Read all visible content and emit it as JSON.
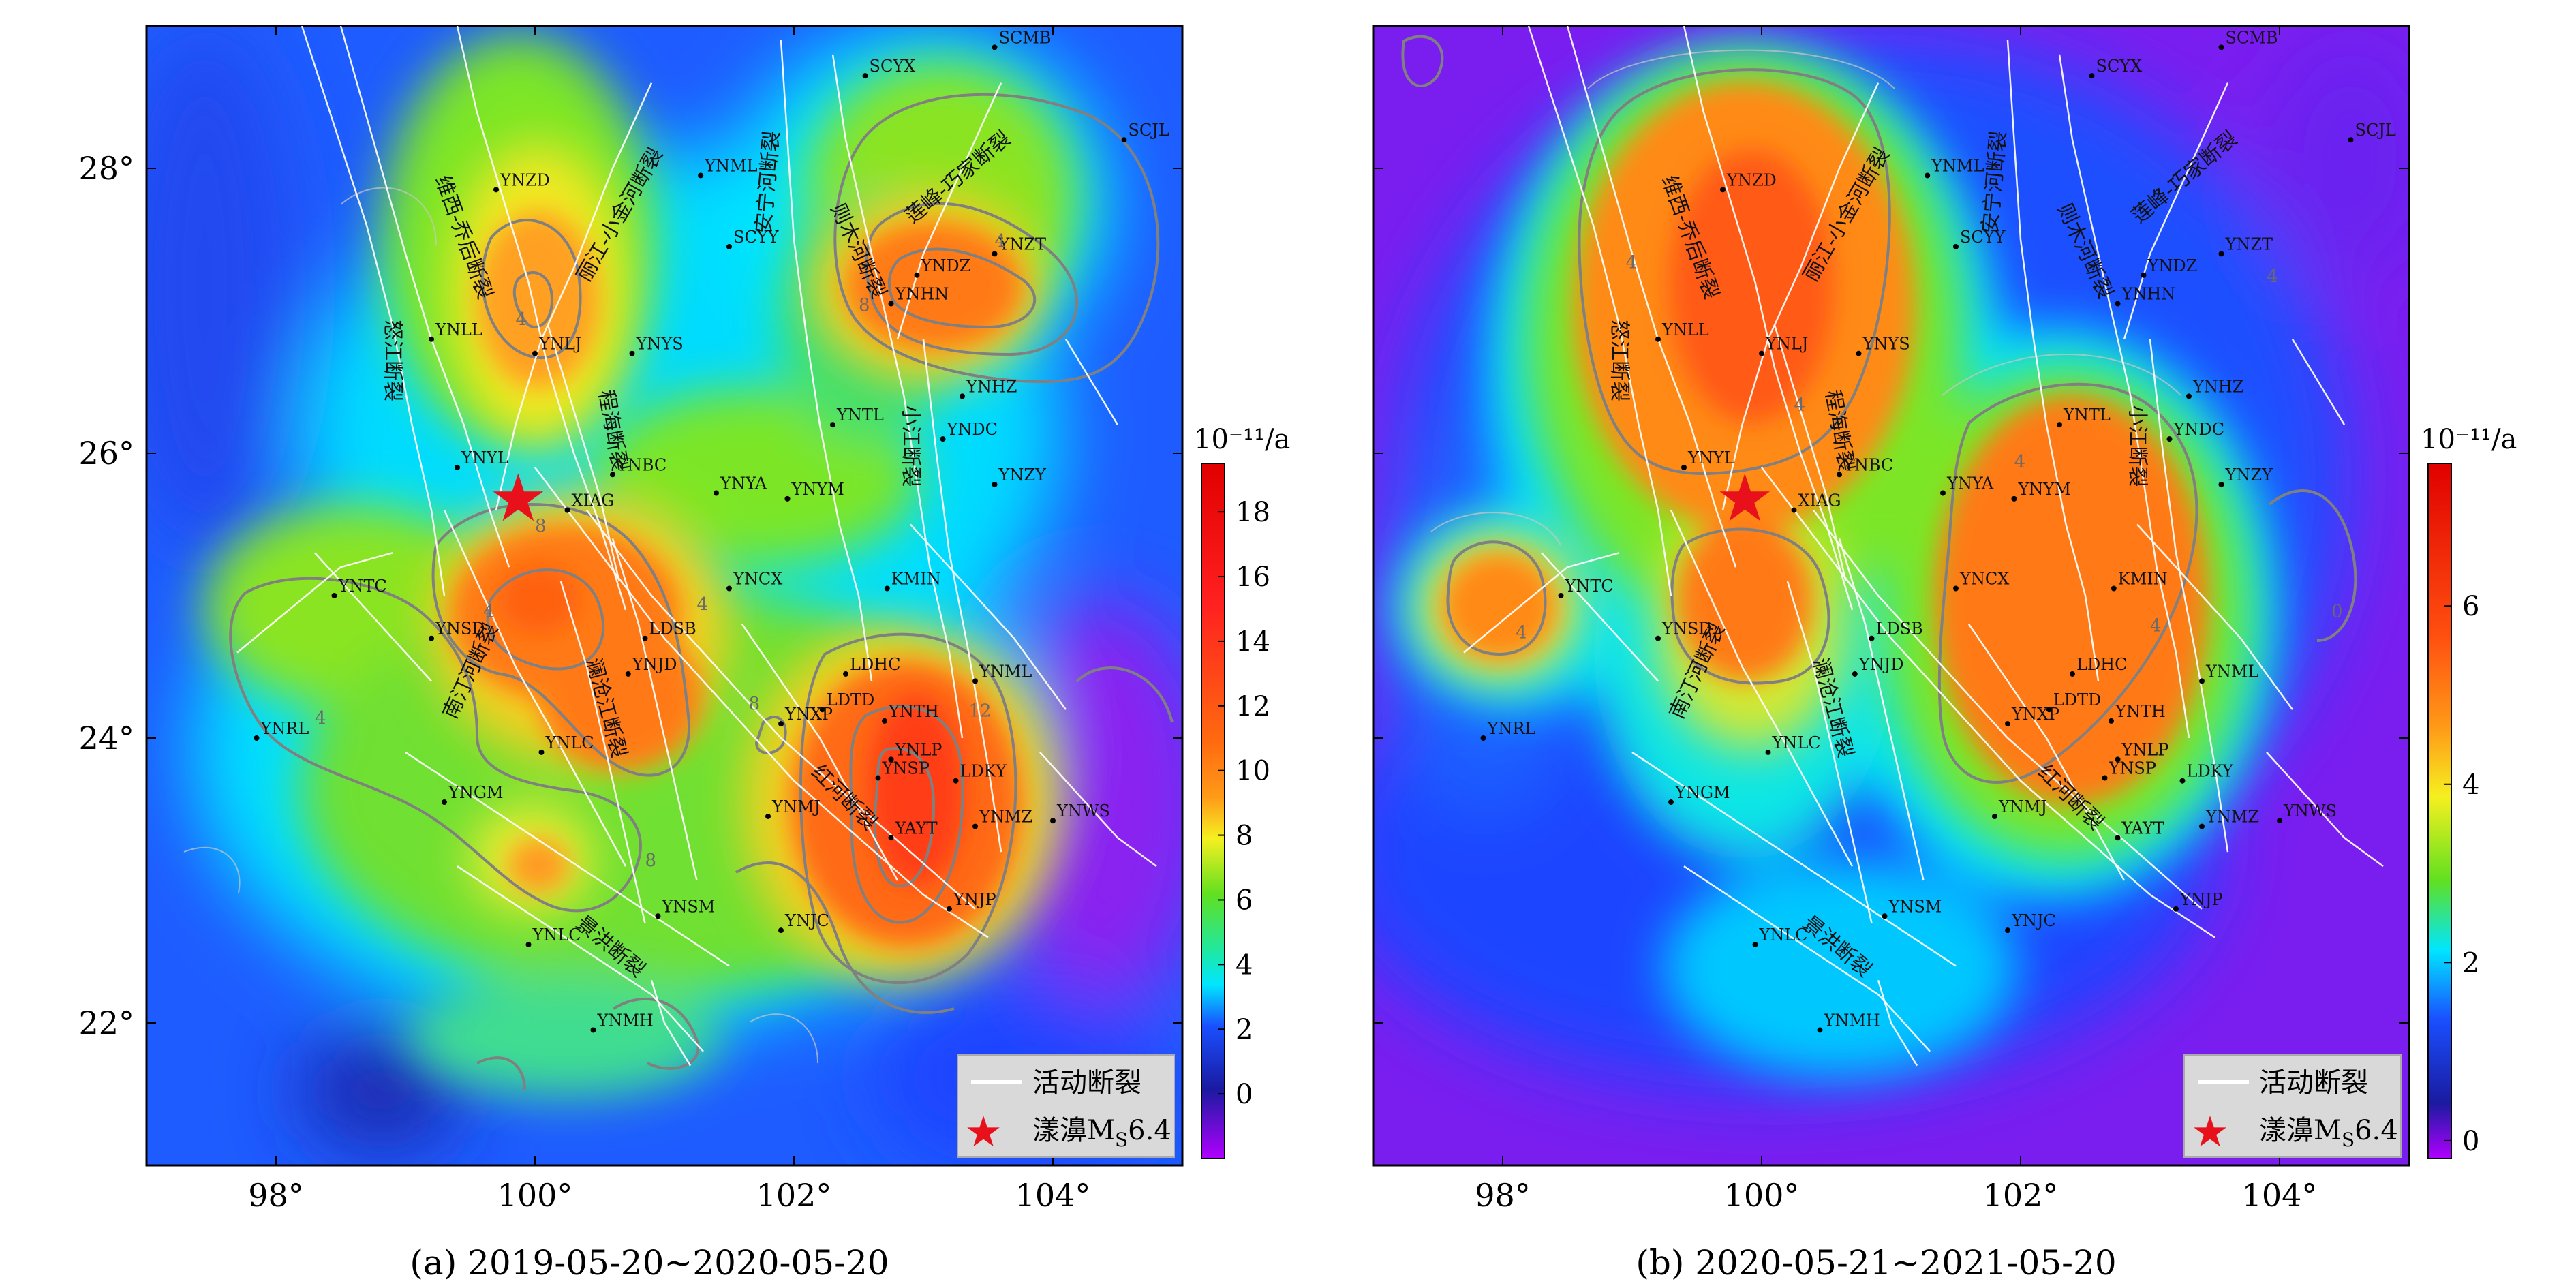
{
  "panels": [
    {
      "id": "a",
      "caption": "(a) 2019-05-20~2020-05-20",
      "x_ticks": [
        "98°",
        "100°",
        "102°",
        "104°"
      ],
      "y_ticks": [
        "22°",
        "24°",
        "26°",
        "28°"
      ],
      "colorbar": {
        "unit": "10⁻¹¹/a",
        "ticks": [
          "0",
          "2",
          "4",
          "6",
          "8",
          "10",
          "12",
          "14",
          "16",
          "18"
        ],
        "range": [
          -2,
          19.5
        ]
      },
      "contour_labels": [
        "4",
        "8",
        "4",
        "8",
        "12",
        "4",
        "4",
        "8",
        "8",
        "4"
      ],
      "epicenter": {
        "lon": 99.87,
        "lat": 25.67
      },
      "stations": [
        {
          "name": "SCMB",
          "lon": 103.55,
          "lat": 28.85
        },
        {
          "name": "SCYX",
          "lon": 102.55,
          "lat": 28.65
        },
        {
          "name": "SCJL",
          "lon": 104.55,
          "lat": 28.2
        },
        {
          "name": "YNZD",
          "lon": 99.7,
          "lat": 27.85
        },
        {
          "name": "YNML",
          "lon": 101.28,
          "lat": 27.95
        },
        {
          "name": "SCYY",
          "lon": 101.5,
          "lat": 27.45
        },
        {
          "name": "YNDZ",
          "lon": 102.95,
          "lat": 27.25
        },
        {
          "name": "YNZT",
          "lon": 103.55,
          "lat": 27.4
        },
        {
          "name": "YNHN",
          "lon": 102.75,
          "lat": 27.05
        },
        {
          "name": "YNLL",
          "lon": 99.2,
          "lat": 26.8
        },
        {
          "name": "YNLJ",
          "lon": 100.0,
          "lat": 26.7
        },
        {
          "name": "YNYS",
          "lon": 100.75,
          "lat": 26.7
        },
        {
          "name": "YNHZ",
          "lon": 103.3,
          "lat": 26.4
        },
        {
          "name": "YNTL",
          "lon": 102.3,
          "lat": 26.2
        },
        {
          "name": "YNDC",
          "lon": 103.15,
          "lat": 26.1
        },
        {
          "name": "YNYL",
          "lon": 99.4,
          "lat": 25.9
        },
        {
          "name": "YNBC",
          "lon": 100.6,
          "lat": 25.85
        },
        {
          "name": "YNYA",
          "lon": 101.4,
          "lat": 25.72
        },
        {
          "name": "YNYM",
          "lon": 101.95,
          "lat": 25.68
        },
        {
          "name": "YNZY",
          "lon": 103.55,
          "lat": 25.78
        },
        {
          "name": "XIAG",
          "lon": 100.25,
          "lat": 25.6
        },
        {
          "name": "YNTC",
          "lon": 98.45,
          "lat": 25.0
        },
        {
          "name": "YNCX",
          "lon": 101.5,
          "lat": 25.05
        },
        {
          "name": "KMIN",
          "lon": 102.72,
          "lat": 25.05
        },
        {
          "name": "YNSD",
          "lon": 99.2,
          "lat": 24.7
        },
        {
          "name": "LDSB",
          "lon": 100.85,
          "lat": 24.7
        },
        {
          "name": "YNJD",
          "lon": 100.72,
          "lat": 24.45
        },
        {
          "name": "LDHC",
          "lon": 102.4,
          "lat": 24.45
        },
        {
          "name": "YNML",
          "lon": 103.4,
          "lat": 24.4
        },
        {
          "name": "LDTD",
          "lon": 102.22,
          "lat": 24.2
        },
        {
          "name": "YNXP",
          "lon": 101.9,
          "lat": 24.1
        },
        {
          "name": "YNTH",
          "lon": 102.7,
          "lat": 24.12
        },
        {
          "name": "YNRL",
          "lon": 97.85,
          "lat": 24.0
        },
        {
          "name": "YNLC",
          "lon": 100.05,
          "lat": 23.9
        },
        {
          "name": "YNLP",
          "lon": 102.75,
          "lat": 23.85
        },
        {
          "name": "YNSP",
          "lon": 102.65,
          "lat": 23.72
        },
        {
          "name": "LDKY",
          "lon": 103.25,
          "lat": 23.7
        },
        {
          "name": "YNGM",
          "lon": 99.3,
          "lat": 23.55
        },
        {
          "name": "YNMJ",
          "lon": 101.8,
          "lat": 23.45
        },
        {
          "name": "YNMZ",
          "lon": 103.4,
          "lat": 23.38
        },
        {
          "name": "YNWS",
          "lon": 104.0,
          "lat": 23.42
        },
        {
          "name": "YAYT",
          "lon": 102.75,
          "lat": 23.3
        },
        {
          "name": "YNJP",
          "lon": 103.2,
          "lat": 22.8
        },
        {
          "name": "YNSM",
          "lon": 100.95,
          "lat": 22.75
        },
        {
          "name": "YNJC",
          "lon": 101.9,
          "lat": 22.65
        },
        {
          "name": "YNLC",
          "lon": 99.95,
          "lat": 22.55
        },
        {
          "name": "YNMH",
          "lon": 100.45,
          "lat": 21.95
        }
      ],
      "faults": [
        {
          "name": "维西-乔后断裂",
          "lon": 99.4,
          "lat": 27.5,
          "rot": 70
        },
        {
          "name": "丽江-小金河断裂",
          "lon": 100.7,
          "lat": 27.65,
          "rot": -60
        },
        {
          "name": "安宁河断裂",
          "lon": 101.85,
          "lat": 27.9,
          "rot": -85
        },
        {
          "name": "则木河断裂",
          "lon": 102.45,
          "lat": 27.4,
          "rot": 65
        },
        {
          "name": "莲峰-巧家断裂",
          "lon": 103.3,
          "lat": 27.9,
          "rot": -40
        },
        {
          "name": "怒江断裂",
          "lon": 98.85,
          "lat": 26.65,
          "rot": 90
        },
        {
          "name": "程海断裂",
          "lon": 100.55,
          "lat": 26.15,
          "rot": 80
        },
        {
          "name": "小江断裂",
          "lon": 102.85,
          "lat": 26.05,
          "rot": 90
        },
        {
          "name": "南汀河断裂",
          "lon": 99.55,
          "lat": 24.45,
          "rot": -65
        },
        {
          "name": "澜沧江断裂",
          "lon": 100.5,
          "lat": 24.2,
          "rot": 75
        },
        {
          "name": "红河断裂",
          "lon": 102.35,
          "lat": 23.55,
          "rot": 45
        },
        {
          "name": "景洪断裂",
          "lon": 100.55,
          "lat": 22.5,
          "rot": 40
        }
      ],
      "legend": {
        "fault": "活动断裂",
        "quake_prefix": "漾濞M",
        "quake_sub": "S",
        "quake_suffix": "6.4"
      }
    },
    {
      "id": "b",
      "caption": "(b) 2020-05-21~2021-05-20",
      "x_ticks": [
        "98°",
        "100°",
        "102°",
        "104°"
      ],
      "y_ticks": [],
      "colorbar": {
        "unit": "10⁻¹¹/a",
        "ticks": [
          "0",
          "2",
          "4",
          "6"
        ],
        "range": [
          -0.2,
          7.6
        ]
      },
      "contour_labels": [
        "4",
        "4",
        "4",
        "4",
        "4",
        "4",
        "0"
      ],
      "epicenter": {
        "lon": 99.87,
        "lat": 25.67
      },
      "stations": [
        {
          "name": "SCMB",
          "lon": 103.55,
          "lat": 28.85
        },
        {
          "name": "SCYX",
          "lon": 102.55,
          "lat": 28.65
        },
        {
          "name": "SCJL",
          "lon": 104.55,
          "lat": 28.2
        },
        {
          "name": "YNZD",
          "lon": 99.7,
          "lat": 27.85
        },
        {
          "name": "YNML",
          "lon": 101.28,
          "lat": 27.95
        },
        {
          "name": "SCYY",
          "lon": 101.5,
          "lat": 27.45
        },
        {
          "name": "YNDZ",
          "lon": 102.95,
          "lat": 27.25
        },
        {
          "name": "YNZT",
          "lon": 103.55,
          "lat": 27.4
        },
        {
          "name": "YNHN",
          "lon": 102.75,
          "lat": 27.05
        },
        {
          "name": "YNLL",
          "lon": 99.2,
          "lat": 26.8
        },
        {
          "name": "YNLJ",
          "lon": 100.0,
          "lat": 26.7
        },
        {
          "name": "YNYS",
          "lon": 100.75,
          "lat": 26.7
        },
        {
          "name": "YNHZ",
          "lon": 103.3,
          "lat": 26.4
        },
        {
          "name": "YNTL",
          "lon": 102.3,
          "lat": 26.2
        },
        {
          "name": "YNDC",
          "lon": 103.15,
          "lat": 26.1
        },
        {
          "name": "YNYL",
          "lon": 99.4,
          "lat": 25.9
        },
        {
          "name": "YNBC",
          "lon": 100.6,
          "lat": 25.85
        },
        {
          "name": "YNYA",
          "lon": 101.4,
          "lat": 25.72
        },
        {
          "name": "YNYM",
          "lon": 101.95,
          "lat": 25.68
        },
        {
          "name": "YNZY",
          "lon": 103.55,
          "lat": 25.78
        },
        {
          "name": "XIAG",
          "lon": 100.25,
          "lat": 25.6
        },
        {
          "name": "YNTC",
          "lon": 98.45,
          "lat": 25.0
        },
        {
          "name": "YNCX",
          "lon": 101.5,
          "lat": 25.05
        },
        {
          "name": "KMIN",
          "lon": 102.72,
          "lat": 25.05
        },
        {
          "name": "YNSD",
          "lon": 99.2,
          "lat": 24.7
        },
        {
          "name": "LDSB",
          "lon": 100.85,
          "lat": 24.7
        },
        {
          "name": "YNJD",
          "lon": 100.72,
          "lat": 24.45
        },
        {
          "name": "LDHC",
          "lon": 102.4,
          "lat": 24.45
        },
        {
          "name": "YNML",
          "lon": 103.4,
          "lat": 24.4
        },
        {
          "name": "LDTD",
          "lon": 102.22,
          "lat": 24.2
        },
        {
          "name": "YNXP",
          "lon": 101.9,
          "lat": 24.1
        },
        {
          "name": "YNTH",
          "lon": 102.7,
          "lat": 24.12
        },
        {
          "name": "YNRL",
          "lon": 97.85,
          "lat": 24.0
        },
        {
          "name": "YNLC",
          "lon": 100.05,
          "lat": 23.9
        },
        {
          "name": "YNLP",
          "lon": 102.75,
          "lat": 23.85
        },
        {
          "name": "YNSP",
          "lon": 102.65,
          "lat": 23.72
        },
        {
          "name": "LDKY",
          "lon": 103.25,
          "lat": 23.7
        },
        {
          "name": "YNGM",
          "lon": 99.3,
          "lat": 23.55
        },
        {
          "name": "YNMJ",
          "lon": 101.8,
          "lat": 23.45
        },
        {
          "name": "YNMZ",
          "lon": 103.4,
          "lat": 23.38
        },
        {
          "name": "YNWS",
          "lon": 104.0,
          "lat": 23.42
        },
        {
          "name": "YAYT",
          "lon": 102.75,
          "lat": 23.3
        },
        {
          "name": "YNJP",
          "lon": 103.2,
          "lat": 22.8
        },
        {
          "name": "YNSM",
          "lon": 100.95,
          "lat": 22.75
        },
        {
          "name": "YNJC",
          "lon": 101.9,
          "lat": 22.65
        },
        {
          "name": "YNLC",
          "lon": 99.95,
          "lat": 22.55
        },
        {
          "name": "YNMH",
          "lon": 100.45,
          "lat": 21.95
        }
      ],
      "faults": [
        {
          "name": "维西-乔后断裂",
          "lon": 99.4,
          "lat": 27.5,
          "rot": 70
        },
        {
          "name": "丽江-小金河断裂",
          "lon": 100.7,
          "lat": 27.65,
          "rot": -60
        },
        {
          "name": "安宁河断裂",
          "lon": 101.85,
          "lat": 27.9,
          "rot": -85
        },
        {
          "name": "则木河断裂",
          "lon": 102.45,
          "lat": 27.4,
          "rot": 65
        },
        {
          "name": "莲峰-巧家断裂",
          "lon": 103.3,
          "lat": 27.9,
          "rot": -40
        },
        {
          "name": "怒江断裂",
          "lon": 98.85,
          "lat": 26.65,
          "rot": 90
        },
        {
          "name": "程海断裂",
          "lon": 100.55,
          "lat": 26.15,
          "rot": 80
        },
        {
          "name": "小江断裂",
          "lon": 102.85,
          "lat": 26.05,
          "rot": 90
        },
        {
          "name": "南汀河断裂",
          "lon": 99.55,
          "lat": 24.45,
          "rot": -65
        },
        {
          "name": "澜沧江断裂",
          "lon": 100.5,
          "lat": 24.2,
          "rot": 75
        },
        {
          "name": "红河断裂",
          "lon": 102.35,
          "lat": 23.55,
          "rot": 45
        },
        {
          "name": "景洪断裂",
          "lon": 100.55,
          "lat": 22.5,
          "rot": 40
        }
      ],
      "legend": {
        "fault": "活动断裂",
        "quake_prefix": "漾濞M",
        "quake_sub": "S",
        "quake_suffix": "6.4"
      }
    }
  ]
}
